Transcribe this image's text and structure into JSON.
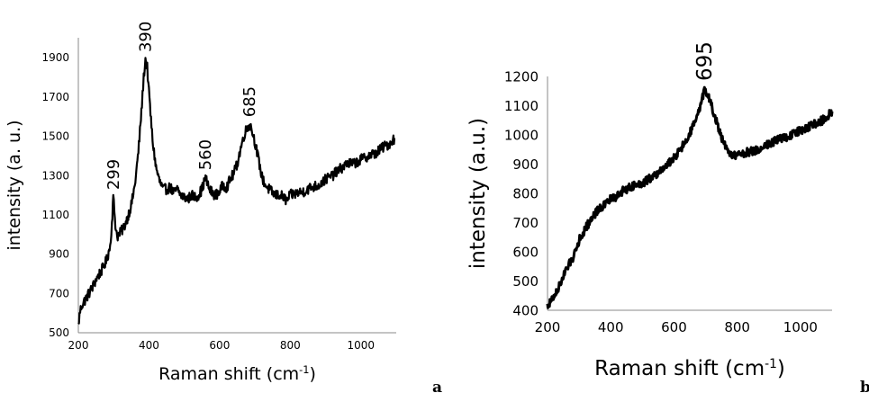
{
  "chart_data": [
    {
      "type": "line",
      "panel_label": "a",
      "title": "",
      "xlabel": "Raman shift (cm",
      "xlabel_sup": "-1",
      "xlabel_end": ")",
      "ylabel": "intensity (a. u.)",
      "xlim": [
        200,
        1100
      ],
      "ylim": [
        500,
        2000
      ],
      "xticks": [
        "200",
        "400",
        "600",
        "800",
        "1000"
      ],
      "yticks": [
        "500",
        "700",
        "900",
        "1100",
        "1300",
        "1500",
        "1700",
        "1900"
      ],
      "grid": false,
      "line_color": "#000000",
      "peak_labels": [
        {
          "x": 299,
          "y": 1190,
          "text": "299"
        },
        {
          "x": 390,
          "y": 1890,
          "text": "390"
        },
        {
          "x": 560,
          "y": 1290,
          "text": "560"
        },
        {
          "x": 685,
          "y": 1560,
          "text": "685"
        }
      ],
      "series": [
        {
          "x": [
            200,
            205,
            210,
            220,
            230,
            240,
            250,
            260,
            270,
            280,
            290,
            295,
            299,
            305,
            310,
            320,
            330,
            340,
            350,
            360,
            370,
            380,
            385,
            390,
            395,
            400,
            410,
            420,
            430,
            440,
            450,
            460,
            470,
            480,
            490,
            500,
            510,
            520,
            530,
            540,
            550,
            560,
            570,
            580,
            590,
            600,
            610,
            620,
            630,
            640,
            650,
            660,
            670,
            680,
            685,
            690,
            700,
            710,
            720,
            730,
            740,
            750,
            760,
            770,
            780,
            790,
            800,
            820,
            840,
            860,
            880,
            900,
            920,
            940,
            960,
            980,
            1000,
            1020,
            1040,
            1060,
            1080,
            1095
          ],
          "y": [
            540,
            610,
            640,
            670,
            700,
            730,
            770,
            800,
            830,
            870,
            940,
            1060,
            1190,
            1050,
            990,
            1010,
            1040,
            1090,
            1150,
            1250,
            1420,
            1660,
            1800,
            1890,
            1850,
            1720,
            1480,
            1340,
            1270,
            1230,
            1230,
            1240,
            1210,
            1230,
            1200,
            1190,
            1180,
            1200,
            1190,
            1200,
            1230,
            1290,
            1230,
            1210,
            1200,
            1220,
            1250,
            1240,
            1280,
            1310,
            1360,
            1440,
            1510,
            1550,
            1560,
            1540,
            1470,
            1380,
            1290,
            1250,
            1230,
            1210,
            1200,
            1200,
            1190,
            1170,
            1200,
            1210,
            1220,
            1240,
            1250,
            1280,
            1300,
            1330,
            1360,
            1360,
            1380,
            1400,
            1410,
            1440,
            1460,
            1490
          ]
        }
      ]
    },
    {
      "type": "line",
      "panel_label": "b",
      "title": "",
      "xlabel": "Raman shift (cm",
      "xlabel_sup": "-1",
      "xlabel_end": ")",
      "ylabel": "intensity (a.u.)",
      "xlim": [
        200,
        1100
      ],
      "ylim": [
        400,
        1200
      ],
      "xticks": [
        "200",
        "400",
        "600",
        "800",
        "1000"
      ],
      "yticks": [
        "400",
        "500",
        "600",
        "700",
        "800",
        "900",
        "1000",
        "1100",
        "1200"
      ],
      "grid": false,
      "line_color": "#000000",
      "peak_labels": [
        {
          "x": 695,
          "y": 1160,
          "text": "695"
        }
      ],
      "series": [
        {
          "x": [
            200,
            220,
            240,
            260,
            280,
            300,
            320,
            340,
            360,
            380,
            400,
            420,
            440,
            460,
            480,
            500,
            520,
            540,
            560,
            580,
            600,
            620,
            640,
            660,
            680,
            695,
            710,
            730,
            750,
            770,
            790,
            810,
            830,
            850,
            870,
            890,
            910,
            930,
            950,
            970,
            990,
            1010,
            1030,
            1050,
            1070,
            1090,
            1100
          ],
          "y": [
            415,
            445,
            490,
            540,
            580,
            640,
            680,
            715,
            745,
            760,
            780,
            790,
            810,
            820,
            830,
            835,
            850,
            860,
            880,
            900,
            920,
            950,
            980,
            1030,
            1080,
            1150,
            1130,
            1060,
            990,
            940,
            930,
            935,
            940,
            945,
            950,
            965,
            975,
            985,
            990,
            1000,
            1010,
            1020,
            1030,
            1040,
            1050,
            1070,
            1080
          ]
        }
      ]
    }
  ]
}
